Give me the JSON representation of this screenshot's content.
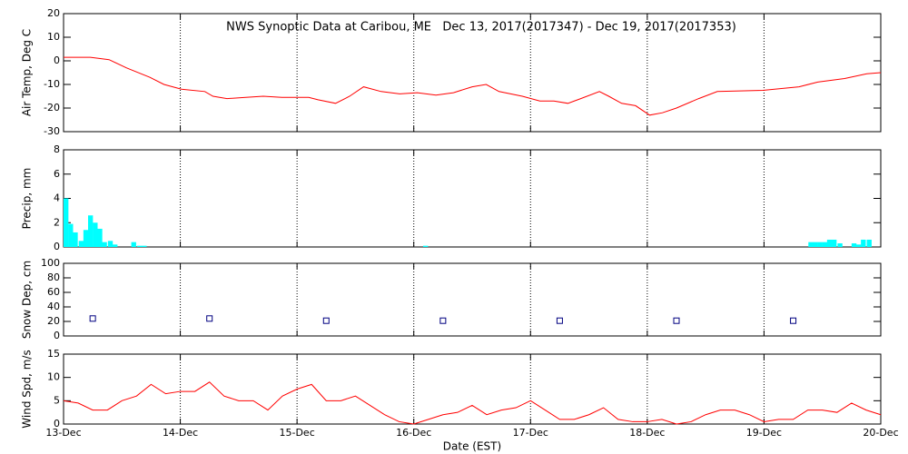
{
  "chart_data": [
    {
      "type": "line",
      "title": "NWS Synoptic Data at Caribou, ME   Dec 13, 2017(2017347) - Dec 19, 2017(2017353)",
      "y_label": "Air Temp, Deg C",
      "x": [
        13.0,
        13.23,
        13.39,
        13.54,
        13.74,
        13.86,
        14.01,
        14.21,
        14.28,
        14.4,
        14.56,
        14.71,
        14.87,
        15.1,
        15.18,
        15.33,
        15.45,
        15.57,
        15.72,
        15.88,
        16.03,
        16.19,
        16.34,
        16.5,
        16.62,
        16.73,
        16.93,
        17.08,
        17.2,
        17.32,
        17.43,
        17.59,
        17.67,
        17.78,
        17.9,
        18.02,
        18.13,
        18.25,
        18.44,
        18.6,
        18.99,
        19.3,
        19.46,
        19.69,
        19.88,
        20.0
      ],
      "series": [
        {
          "name": "Air Temp",
          "color": "#ff0000",
          "values": [
            1.5,
            1.5,
            0.5,
            -3,
            -7,
            -10,
            -12,
            -13,
            -15,
            -16,
            -15.5,
            -15,
            -15.5,
            -15.5,
            -16.5,
            -18,
            -15,
            -11,
            -13,
            -14,
            -13.5,
            -14.5,
            -13.5,
            -11,
            -10,
            -13,
            -15,
            -17,
            -17,
            -18,
            -16,
            -13,
            -15,
            -18,
            -19,
            -23,
            -22,
            -20,
            -16,
            -13,
            -12.5,
            -11,
            -9,
            -7.5,
            -5.5,
            -5
          ]
        }
      ],
      "xlim": [
        13,
        20
      ],
      "xticks": [
        13,
        14,
        15,
        16,
        17,
        18,
        19,
        20
      ],
      "ylim": [
        -30,
        20
      ],
      "yticks": [
        -30,
        -20,
        -10,
        0,
        10,
        20
      ],
      "grid": true
    },
    {
      "type": "bar",
      "y_label": "Precip, mm",
      "x": [
        13.0,
        13.04,
        13.08,
        13.13,
        13.17,
        13.21,
        13.25,
        13.29,
        13.33,
        13.38,
        13.42,
        13.58,
        13.63,
        13.67,
        16.08,
        19.38,
        19.42,
        19.46,
        19.5,
        19.54,
        19.58,
        19.63,
        19.75,
        19.79,
        19.83,
        19.88
      ],
      "series": [
        {
          "name": "Precip",
          "color": "#00ffff",
          "values": [
            4,
            1.9,
            1.2,
            0.5,
            1.4,
            2.6,
            2.0,
            1.5,
            0.4,
            0.5,
            0.2,
            0.4,
            0.1,
            0.1,
            0.1,
            0.4,
            0.4,
            0.4,
            0.4,
            0.6,
            0.6,
            0.3,
            0.3,
            0.2,
            0.6,
            0.6
          ]
        }
      ],
      "xlim": [
        13,
        20
      ],
      "xticks": [
        13,
        14,
        15,
        16,
        17,
        18,
        19,
        20
      ],
      "ylim": [
        0,
        8
      ],
      "yticks": [
        0,
        2,
        4,
        6,
        8
      ],
      "grid": true
    },
    {
      "type": "scatter",
      "y_label": "Snow Dep, cm",
      "x": [
        13.25,
        14.25,
        15.25,
        16.25,
        17.25,
        18.25,
        19.25
      ],
      "series": [
        {
          "name": "Snow Depth",
          "color": "#000080",
          "values": [
            24,
            24,
            21,
            21,
            21,
            21,
            21
          ]
        }
      ],
      "xlim": [
        13,
        20
      ],
      "xticks": [
        13,
        14,
        15,
        16,
        17,
        18,
        19,
        20
      ],
      "ylim": [
        0,
        100
      ],
      "yticks": [
        0,
        20,
        40,
        60,
        80,
        100
      ],
      "grid": true
    },
    {
      "type": "line",
      "y_label": "Wind Spd, m/s",
      "x_label": "Date (EST)",
      "x": [
        13.0,
        13.125,
        13.25,
        13.375,
        13.5,
        13.625,
        13.75,
        13.875,
        14.0,
        14.125,
        14.25,
        14.375,
        14.5,
        14.625,
        14.75,
        14.875,
        15.0,
        15.125,
        15.25,
        15.375,
        15.5,
        15.625,
        15.75,
        15.875,
        16.0,
        16.125,
        16.25,
        16.375,
        16.5,
        16.625,
        16.75,
        16.875,
        17.0,
        17.125,
        17.25,
        17.375,
        17.5,
        17.625,
        17.75,
        17.875,
        18.0,
        18.125,
        18.25,
        18.375,
        18.5,
        18.625,
        18.75,
        18.875,
        19.0,
        19.125,
        19.25,
        19.375,
        19.5,
        19.625,
        19.75,
        19.875,
        20.0
      ],
      "series": [
        {
          "name": "Wind Speed",
          "color": "#ff0000",
          "values": [
            5,
            4.5,
            3,
            3,
            5,
            6,
            8.5,
            6.5,
            7,
            7,
            9,
            6,
            5,
            5,
            3,
            6,
            7.5,
            8.5,
            5,
            5,
            6,
            4,
            2,
            0.5,
            0,
            1,
            2,
            2.5,
            4,
            2,
            3,
            3.5,
            5,
            3,
            1,
            1,
            2,
            3.5,
            1,
            0.5,
            0.5,
            1,
            0,
            0.5,
            2,
            3,
            3,
            2,
            0.5,
            1,
            1,
            3,
            3,
            2.5,
            4.5,
            3,
            2
          ]
        }
      ],
      "xlim": [
        13,
        20
      ],
      "xticks": [
        {
          "value": 13,
          "label": "13-Dec"
        },
        {
          "value": 14,
          "label": "14-Dec"
        },
        {
          "value": 15,
          "label": "15-Dec"
        },
        {
          "value": 16,
          "label": "16-Dec"
        },
        {
          "value": 17,
          "label": "17-Dec"
        },
        {
          "value": 18,
          "label": "18-Dec"
        },
        {
          "value": 19,
          "label": "19-Dec"
        },
        {
          "value": 20,
          "label": "20-Dec"
        }
      ],
      "ylim": [
        0,
        15
      ],
      "yticks": [
        0,
        5,
        10,
        15
      ],
      "grid": true
    }
  ]
}
